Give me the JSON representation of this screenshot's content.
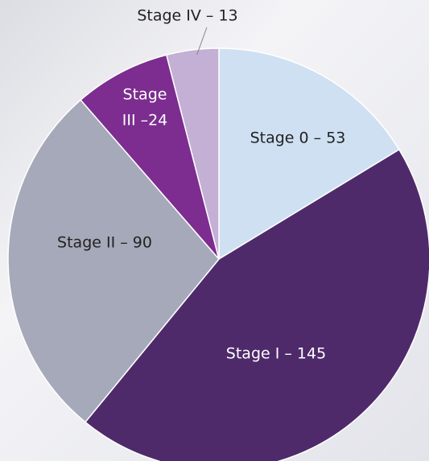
{
  "chart_data": {
    "type": "pie",
    "labels": [
      [
        "Stage 0 – 53"
      ],
      [
        "Stage I – 145"
      ],
      [
        "Stage II – 90"
      ],
      [
        "Stage",
        "III –24"
      ],
      [
        "Stage IV – 13"
      ]
    ],
    "values": [
      53,
      145,
      90,
      24,
      13
    ],
    "colors": [
      "#cfe0f2",
      "#4f2a6b",
      "#a6a9b9",
      "#7c2d8f",
      "#c4afd5"
    ]
  }
}
